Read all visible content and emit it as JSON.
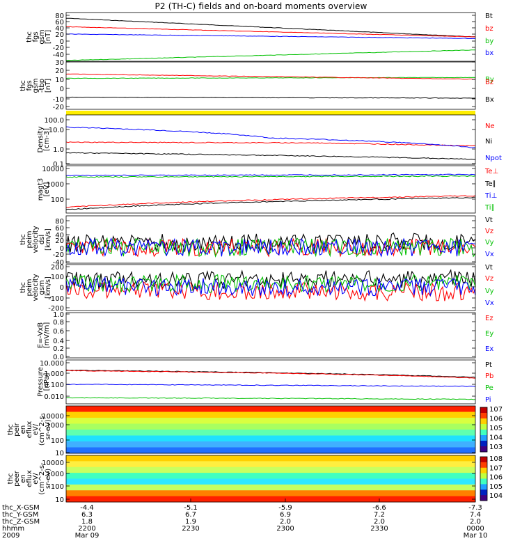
{
  "title": "P2 (TH-C) fields and on-board moments overview",
  "colors": {
    "black": "#000000",
    "red": "#ff0000",
    "green": "#00c000",
    "blue": "#0000ff",
    "yellow": "#ffee00"
  },
  "chart_data": [
    {
      "type": "line",
      "panel": "fgs_gsm",
      "ylabel": [
        "thc",
        "fgs",
        "gsm",
        "[nT]"
      ],
      "yticks": [
        "80",
        "60",
        "40",
        "20",
        "0",
        "-20",
        "-40"
      ],
      "ylim": [
        -40,
        80
      ],
      "series": [
        {
          "name": "Bt",
          "color": "#000000",
          "x": [
            0,
            1
          ],
          "values": [
            66,
            20
          ]
        },
        {
          "name": "bz",
          "color": "#ff0000",
          "x": [
            0,
            1
          ],
          "values": [
            45,
            20
          ]
        },
        {
          "name": "by",
          "color": "#00c000",
          "x": [
            0,
            1
          ],
          "values": [
            -38,
            -12
          ]
        },
        {
          "name": "bx",
          "color": "#0000ff",
          "x": [
            0,
            1
          ],
          "values": [
            27,
            16
          ]
        }
      ]
    },
    {
      "type": "line",
      "panel": "fgs_gsm_dtb",
      "ylabel": [
        "thc",
        "fgs",
        "gsm",
        "-tbp",
        "[nT]"
      ],
      "yticks": [
        "30",
        "20",
        "10",
        "0",
        "-10",
        "-20"
      ],
      "ylim": [
        -25,
        30
      ],
      "series": [
        {
          "name": "By",
          "color": "#00c000",
          "x": [
            0,
            1
          ],
          "values": [
            11,
            12
          ]
        },
        {
          "name": "Bz",
          "color": "#ff0000",
          "x": [
            0,
            1
          ],
          "values": [
            16,
            10
          ]
        },
        {
          "name": "Bx",
          "color": "#000000",
          "x": [
            0,
            1
          ],
          "values": [
            -11,
            -12
          ]
        }
      ]
    },
    {
      "type": "line",
      "panel": "density",
      "ylabel": [
        "Density",
        "[cm-3]"
      ],
      "yticks": [
        "100.0",
        "10.0",
        "1.0",
        "0.1"
      ],
      "scale": "log",
      "ylim": [
        0.1,
        100
      ],
      "series": [
        {
          "name": "Ne",
          "color": "#ff0000",
          "x": [
            0,
            0.6,
            1
          ],
          "values": [
            2.2,
            2.0,
            1.3
          ]
        },
        {
          "name": "Ni",
          "color": "#000000",
          "x": [
            0,
            1
          ],
          "values": [
            0.5,
            0.2
          ]
        },
        {
          "name": "Npot",
          "color": "#0000ff",
          "x": [
            0,
            0.5,
            1
          ],
          "values": [
            18,
            4,
            1
          ]
        }
      ]
    },
    {
      "type": "line",
      "panel": "temperature",
      "ylabel": [
        "magt3",
        "[eV]"
      ],
      "yticks": [
        "10000",
        "1000",
        "100"
      ],
      "scale": "log",
      "ylim": [
        30,
        10000
      ],
      "series": [
        {
          "name": "Te⊥",
          "color": "#ff0000",
          "x": [
            0,
            1
          ],
          "values": [
            60,
            250
          ]
        },
        {
          "name": "Te∥",
          "color": "#000000",
          "x": [
            0,
            1
          ],
          "values": [
            45,
            200
          ]
        },
        {
          "name": "Ti⊥",
          "color": "#0000ff",
          "x": [
            0,
            1
          ],
          "values": [
            3000,
            3400
          ]
        },
        {
          "name": "Ti∥",
          "color": "#00c000",
          "x": [
            0,
            1
          ],
          "values": [
            2500,
            2800
          ]
        }
      ]
    },
    {
      "type": "line",
      "panel": "peim_velocity_dsl",
      "ylabel": [
        "thc",
        "peim",
        "velocity",
        "dsl",
        "[km/s]"
      ],
      "yticks": [
        "80",
        "60",
        "40",
        "20",
        "0",
        "-20",
        "-40"
      ],
      "ylim": [
        -40,
        80
      ],
      "series": [
        {
          "name": "Vt",
          "color": "#000000",
          "x": [
            0,
            1
          ],
          "values": [
            10,
            15
          ]
        },
        {
          "name": "Vz",
          "color": "#ff0000",
          "x": [
            0,
            1
          ],
          "values": [
            0,
            0
          ]
        },
        {
          "name": "Vy",
          "color": "#00c000",
          "x": [
            0,
            1
          ],
          "values": [
            0,
            0
          ]
        },
        {
          "name": "Vx",
          "color": "#0000ff",
          "x": [
            0,
            1
          ],
          "values": [
            0,
            0
          ]
        }
      ]
    },
    {
      "type": "line",
      "panel": "peim_velocity_gsm",
      "ylabel": [
        "thc",
        "peim",
        "velocity",
        "gsm",
        "[km/s]"
      ],
      "yticks": [
        "200",
        "100",
        "0",
        "-100",
        "-200"
      ],
      "ylim": [
        -200,
        200
      ],
      "series": [
        {
          "name": "Vt",
          "color": "#000000",
          "x": [
            0,
            1
          ],
          "values": [
            60,
            80
          ]
        },
        {
          "name": "Vz",
          "color": "#ff0000",
          "x": [
            0,
            1
          ],
          "values": [
            -20,
            -40
          ]
        },
        {
          "name": "Vy",
          "color": "#00c000",
          "x": [
            0,
            1
          ],
          "values": [
            30,
            40
          ]
        },
        {
          "name": "Vx",
          "color": "#0000ff",
          "x": [
            0,
            1
          ],
          "values": [
            10,
            0
          ]
        }
      ]
    },
    {
      "type": "line",
      "panel": "efield",
      "ylabel": [
        "E=-VxB",
        "[mV/m]"
      ],
      "yticks": [
        "1.0",
        "0.8",
        "0.6",
        "0.4",
        "0.2",
        "0.0"
      ],
      "ylim": [
        0,
        1
      ],
      "series": [
        {
          "name": "Ez",
          "color": "#ff0000",
          "x": [],
          "values": []
        },
        {
          "name": "Ey",
          "color": "#00c000",
          "x": [],
          "values": []
        },
        {
          "name": "Ex",
          "color": "#0000ff",
          "x": [],
          "values": []
        }
      ]
    },
    {
      "type": "line",
      "panel": "pressure",
      "ylabel": [
        "Pressure",
        "[nPa]"
      ],
      "yticks": [
        "10.000",
        "1.000",
        "0.100",
        "0.010"
      ],
      "scale": "log",
      "ylim": [
        0.004,
        10
      ],
      "series": [
        {
          "name": "Pt",
          "color": "#000000",
          "x": [
            0,
            1
          ],
          "values": [
            1.6,
            0.45
          ]
        },
        {
          "name": "Pb",
          "color": "#ff0000",
          "x": [
            0,
            1
          ],
          "values": [
            1.5,
            0.4
          ]
        },
        {
          "name": "Pe",
          "color": "#00c000",
          "x": [
            0,
            1
          ],
          "values": [
            0.012,
            0.009
          ]
        },
        {
          "name": "Pi",
          "color": "#0000ff",
          "x": [
            0,
            1
          ],
          "values": [
            0.13,
            0.09
          ]
        }
      ]
    },
    {
      "type": "heatmap",
      "panel": "peir_en_eflux",
      "ylabel": [
        "thc",
        "peir",
        "en",
        "eflux",
        "eV/",
        "(cm^2-s-",
        "sr-eV)"
      ],
      "yticks": [
        "10000",
        "1000",
        "100",
        "10"
      ],
      "colorbar": [
        "10^7",
        "10^6",
        "10^5",
        "10^4",
        "10^3"
      ]
    },
    {
      "type": "heatmap",
      "panel": "peer_en_eflux",
      "ylabel": [
        "thc",
        "peer",
        "en",
        "eflux",
        "eV/",
        "(cm^2-s-",
        "sr-eV)"
      ],
      "yticks": [
        "10000",
        "1000",
        "100",
        "10"
      ],
      "colorbar": [
        "10^8",
        "10^7",
        "10^6",
        "10^5",
        "10^4"
      ]
    }
  ],
  "footer": {
    "labels": [
      "thc_X-GSM",
      "thc_Y-GSM",
      "thc_Z-GSM",
      "hhmm",
      "2009"
    ],
    "columns": [
      {
        "x": "-4.4",
        "y": "6.3",
        "z": "1.8",
        "hhmm": "2200",
        "date": "Mar 09"
      },
      {
        "x": "-5.1",
        "y": "6.7",
        "z": "1.9",
        "hhmm": "2230",
        "date": ""
      },
      {
        "x": "-5.9",
        "y": "6.9",
        "z": "2.0",
        "hhmm": "2300",
        "date": ""
      },
      {
        "x": "-6.6",
        "y": "7.2",
        "z": "2.0",
        "hhmm": "2330",
        "date": ""
      },
      {
        "x": "-7.3",
        "y": "7.4",
        "z": "2.0",
        "hhmm": "0000",
        "date": "Mar 10"
      }
    ]
  }
}
